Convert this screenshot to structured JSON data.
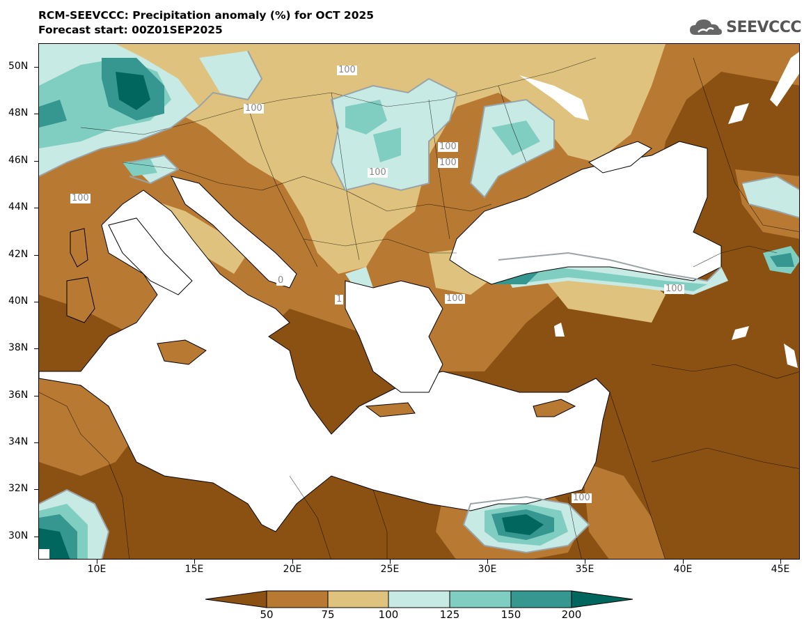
{
  "header": {
    "title_line1": "RCM-SEEVCCC: Precipitation anomaly (%) for OCT 2025",
    "title_line2": "Forecast start: 00Z01SEP2025",
    "logo_text": "SEEVCCC"
  },
  "map": {
    "lat_labels": [
      "50N",
      "48N",
      "46N",
      "44N",
      "42N",
      "40N",
      "38N",
      "36N",
      "34N",
      "32N",
      "30N"
    ],
    "lon_labels": [
      "10E",
      "15E",
      "20E",
      "25E",
      "30E",
      "35E",
      "40E",
      "45E"
    ],
    "contour_labels": [
      "100",
      "100",
      "100",
      "100",
      "100",
      "100",
      "100",
      "100",
      "100",
      "0",
      "1"
    ]
  },
  "colorbar": {
    "colors": [
      "#8b5112",
      "#b87a33",
      "#dfc27d",
      "#c7eae5",
      "#80cdc1",
      "#35978f",
      "#01665e"
    ],
    "tick_labels": [
      "50",
      "75",
      "100",
      "125",
      "150",
      "200"
    ]
  }
}
